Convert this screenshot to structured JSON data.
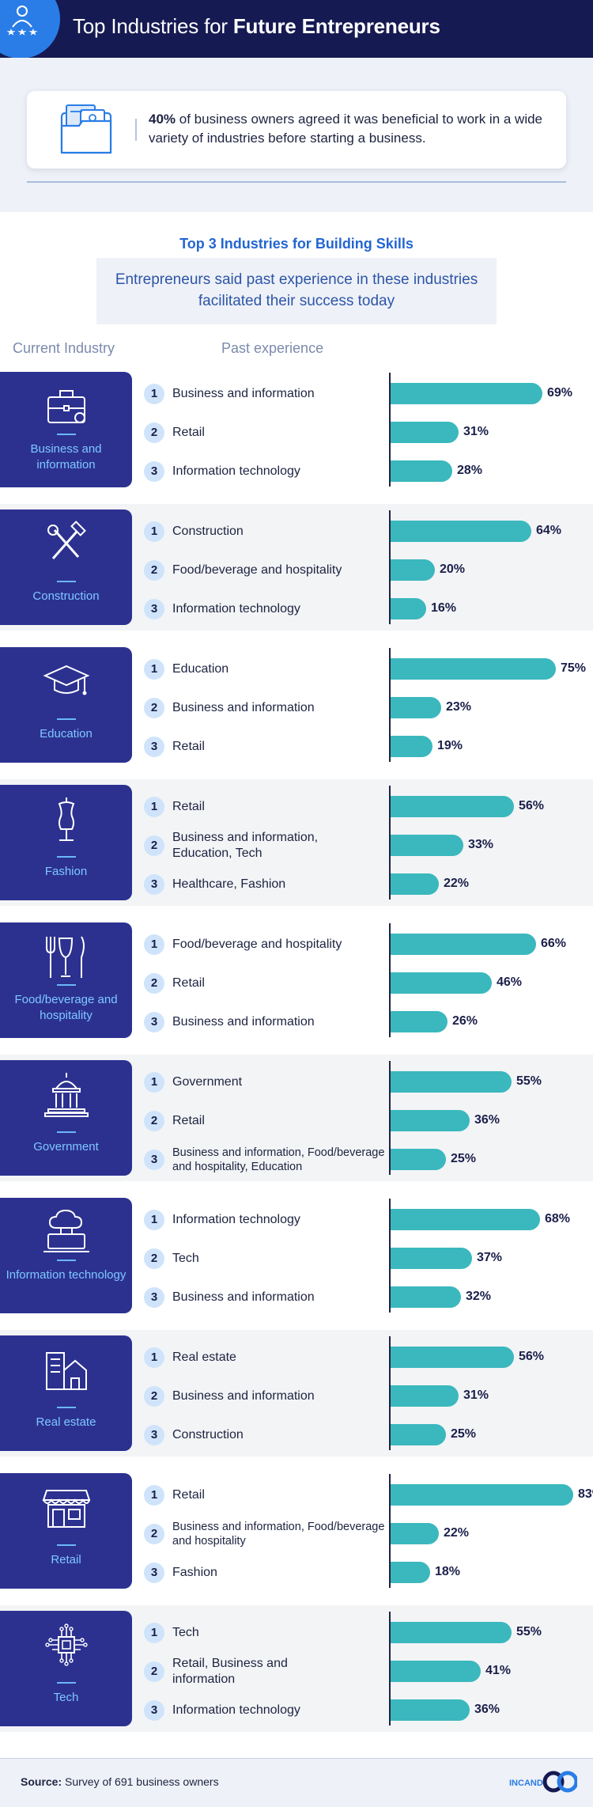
{
  "header": {
    "title_plain": "Top Industries for",
    "title_bold": "Future Entrepreneurs"
  },
  "callout": {
    "stat": "40%",
    "text": "of business owners agreed it was beneficial to work in a wide variety of industries before starting a business."
  },
  "subtitle": "Top 3 Industries for Building Skills",
  "subheading": "Entrepreneurs said past experience in these industries facilitated their success today",
  "columns": {
    "current": "Current Industry",
    "past": "Past experience"
  },
  "colors": {
    "navy": "#151a52",
    "card": "#2c3190",
    "bar": "#3ab8be",
    "accent": "#2366d1"
  },
  "chart_data": {
    "type": "bar",
    "unit": "%",
    "xlim": [
      0,
      100
    ],
    "groups": [
      {
        "industry": "Business and information",
        "icon": "briefcase-icon",
        "items": [
          {
            "rank": "1",
            "label": "Business and information",
            "value": 69
          },
          {
            "rank": "2",
            "label": "Retail",
            "value": 31
          },
          {
            "rank": "3",
            "label": "Information technology",
            "value": 28
          }
        ]
      },
      {
        "industry": "Construction",
        "icon": "tools-icon",
        "items": [
          {
            "rank": "1",
            "label": "Construction",
            "value": 64
          },
          {
            "rank": "2",
            "label": "Food/beverage and hospitality",
            "value": 20
          },
          {
            "rank": "3",
            "label": "Information technology",
            "value": 16
          }
        ]
      },
      {
        "industry": "Education",
        "icon": "graduation-cap-icon",
        "items": [
          {
            "rank": "1",
            "label": "Education",
            "value": 75
          },
          {
            "rank": "2",
            "label": "Business and information",
            "value": 23
          },
          {
            "rank": "3",
            "label": "Retail",
            "value": 19
          }
        ]
      },
      {
        "industry": "Fashion",
        "icon": "mannequin-icon",
        "items": [
          {
            "rank": "1",
            "label": "Retail",
            "value": 56
          },
          {
            "rank": "2",
            "label": "Business and information, Education, Tech",
            "value": 33
          },
          {
            "rank": "3",
            "label": "Healthcare, Fashion",
            "value": 22
          }
        ]
      },
      {
        "industry": "Food/beverage and hospitality",
        "icon": "cutlery-icon",
        "items": [
          {
            "rank": "1",
            "label": "Food/beverage and hospitality",
            "value": 66
          },
          {
            "rank": "2",
            "label": "Retail",
            "value": 46
          },
          {
            "rank": "3",
            "label": "Business and information",
            "value": 26
          }
        ]
      },
      {
        "industry": "Government",
        "icon": "capitol-icon",
        "items": [
          {
            "rank": "1",
            "label": "Government",
            "value": 55
          },
          {
            "rank": "2",
            "label": "Retail",
            "value": 36
          },
          {
            "rank": "3",
            "label": "Business and information, Food/beverage and hospitality, Education",
            "value": 25
          }
        ]
      },
      {
        "industry": "Information technology",
        "icon": "cloud-laptop-icon",
        "items": [
          {
            "rank": "1",
            "label": "Information technology",
            "value": 68
          },
          {
            "rank": "2",
            "label": "Tech",
            "value": 37
          },
          {
            "rank": "3",
            "label": "Business and information",
            "value": 32
          }
        ]
      },
      {
        "industry": "Real estate",
        "icon": "buildings-icon",
        "items": [
          {
            "rank": "1",
            "label": "Real estate",
            "value": 56
          },
          {
            "rank": "2",
            "label": "Business and information",
            "value": 31
          },
          {
            "rank": "3",
            "label": "Construction",
            "value": 25
          }
        ]
      },
      {
        "industry": "Retail",
        "icon": "storefront-icon",
        "items": [
          {
            "rank": "1",
            "label": "Retail",
            "value": 83
          },
          {
            "rank": "2",
            "label": "Business and information, Food/beverage and hospitality",
            "value": 22
          },
          {
            "rank": "3",
            "label": "Fashion",
            "value": 18
          }
        ]
      },
      {
        "industry": "Tech",
        "icon": "chip-icon",
        "items": [
          {
            "rank": "1",
            "label": "Tech",
            "value": 55
          },
          {
            "rank": "2",
            "label": "Retail, Business and information",
            "value": 41
          },
          {
            "rank": "3",
            "label": "Information technology",
            "value": 36
          }
        ]
      }
    ]
  },
  "footer": {
    "source_label": "Source:",
    "source_text": "Survey of 691 business owners",
    "brand": "INCAND"
  }
}
